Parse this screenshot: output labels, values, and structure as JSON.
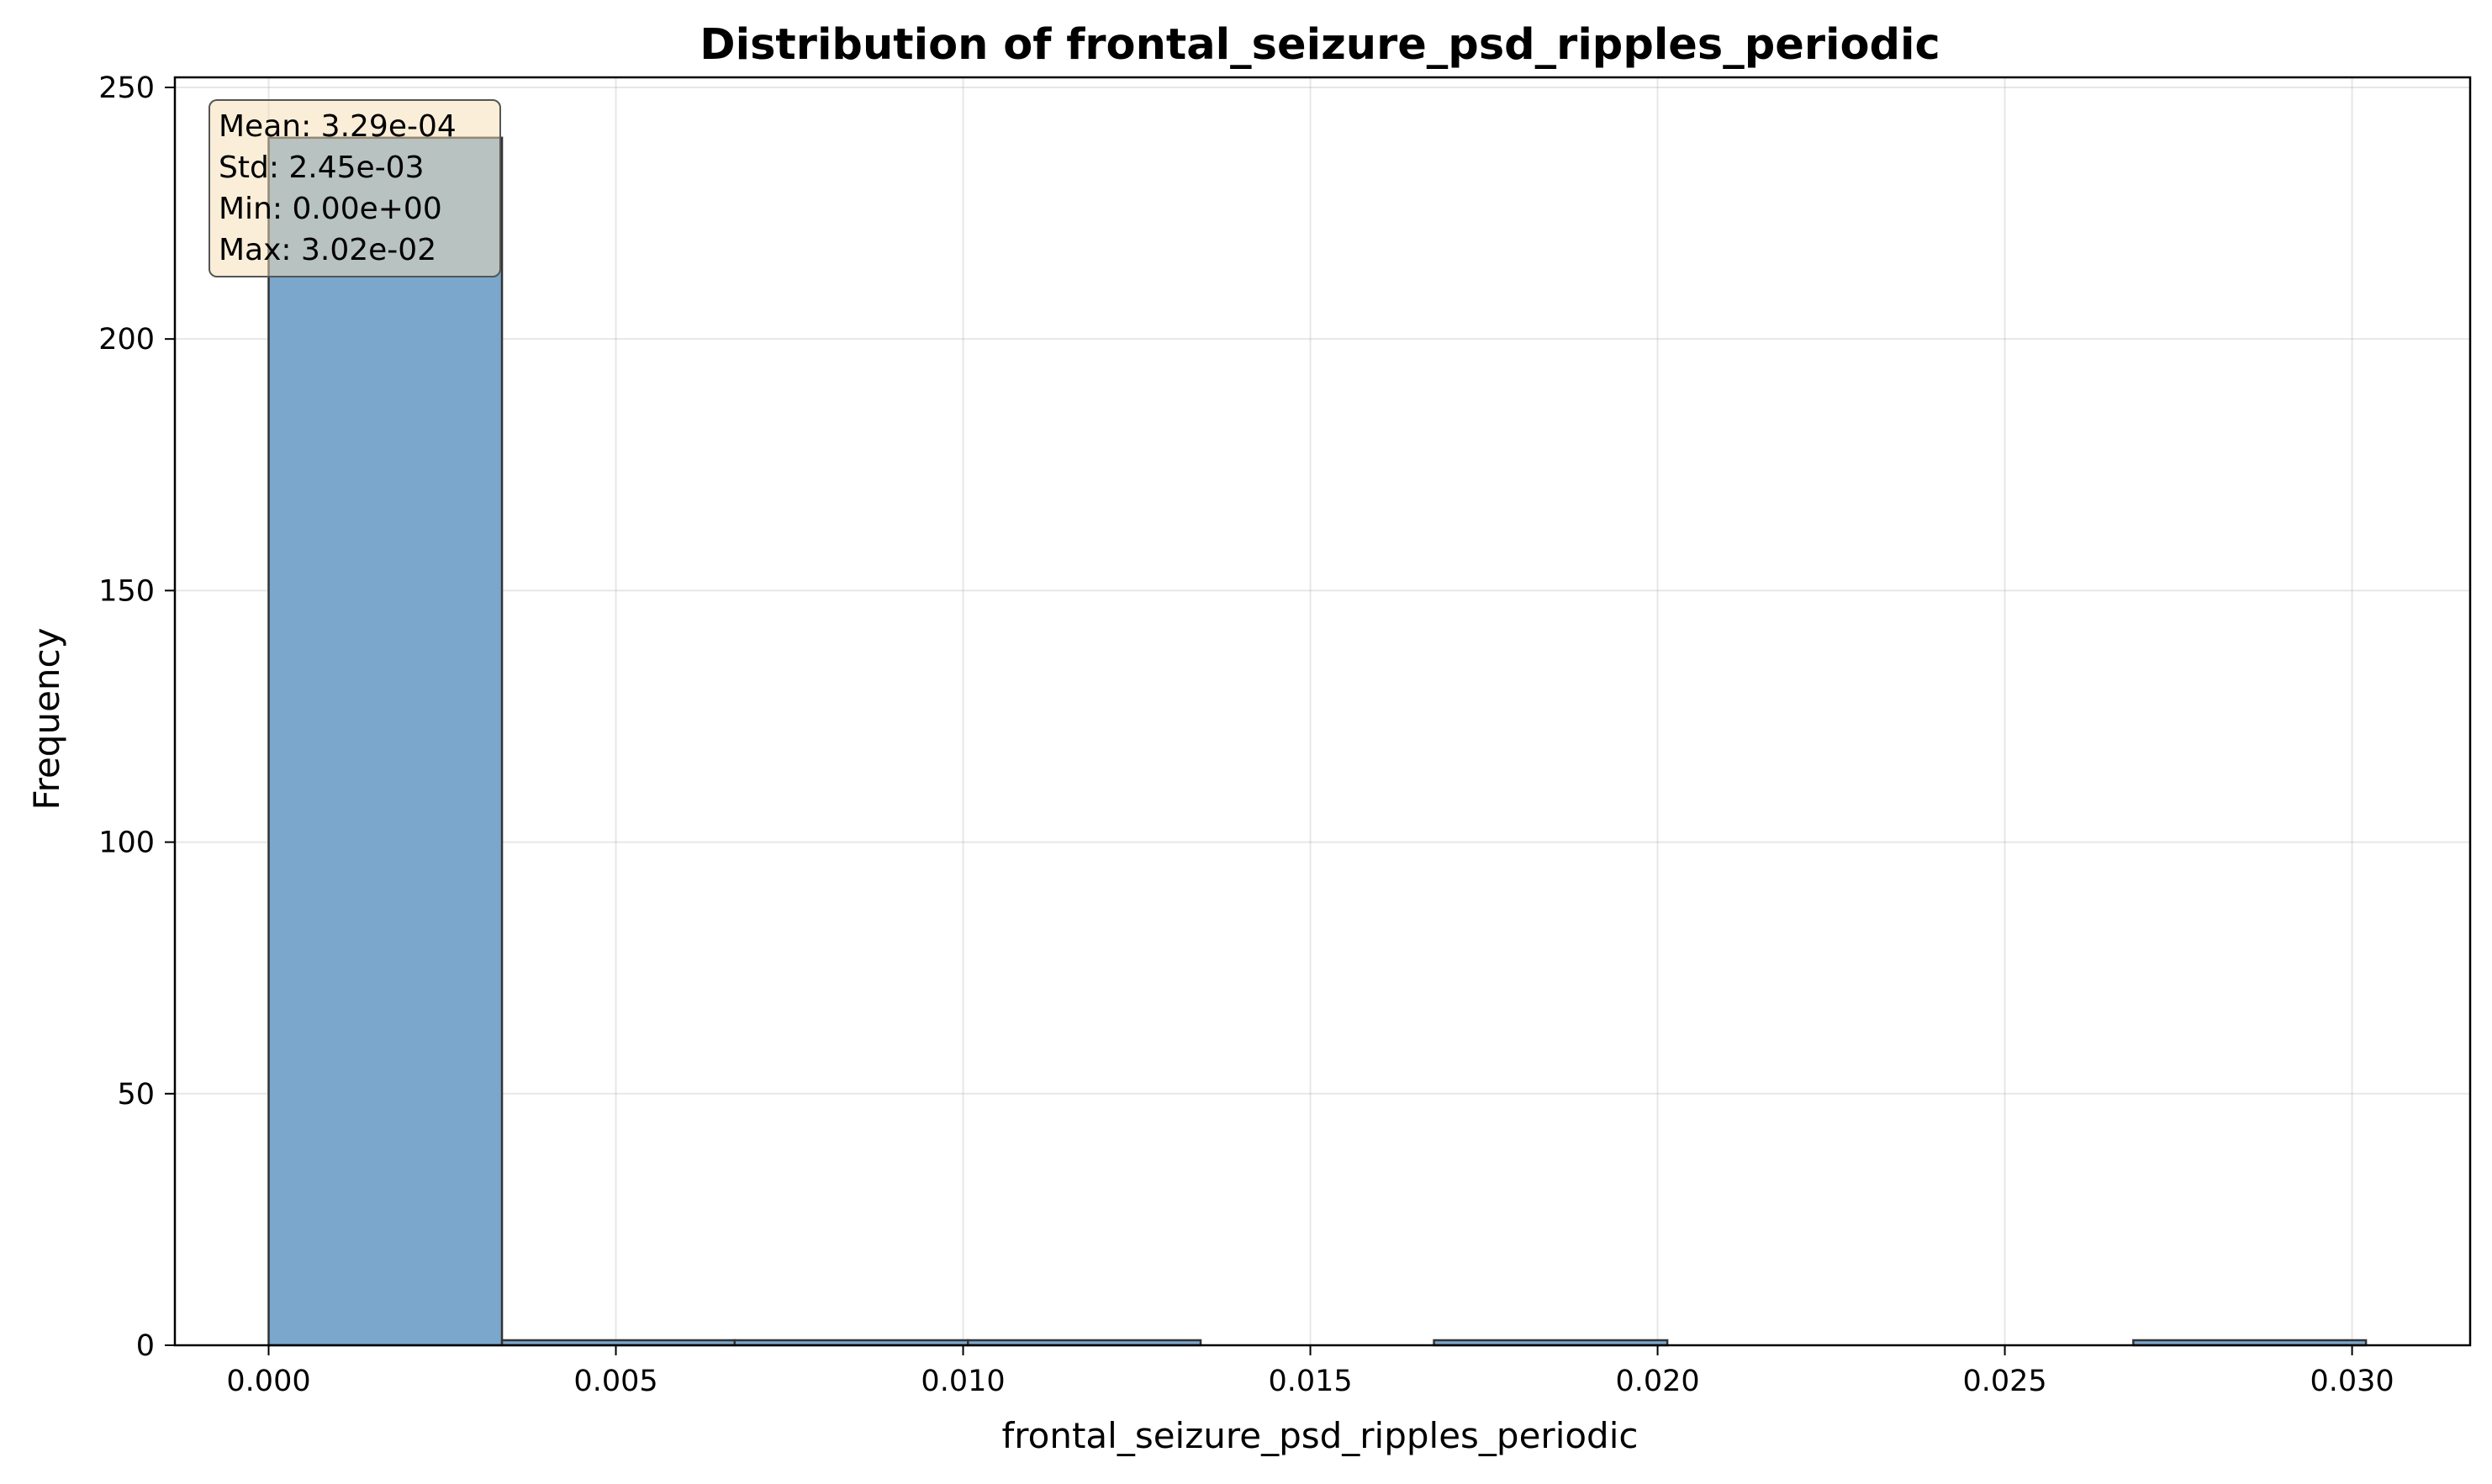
{
  "chart_data": {
    "type": "bar",
    "title": "Distribution of frontal_seizure_psd_ripples_periodic",
    "xlabel": "frontal_seizure_psd_ripples_periodic",
    "ylabel": "Frequency",
    "xlim": [
      -0.00135,
      0.0317
    ],
    "ylim": [
      0,
      252
    ],
    "xticks": [
      0.0,
      0.005,
      0.01,
      0.015,
      0.02,
      0.025,
      0.03
    ],
    "xtick_labels": [
      "0.000",
      "0.005",
      "0.010",
      "0.015",
      "0.020",
      "0.025",
      "0.030"
    ],
    "yticks": [
      0,
      50,
      100,
      150,
      200,
      250
    ],
    "ytick_labels": [
      "0",
      "50",
      "100",
      "150",
      "200",
      "250"
    ],
    "bin_edges": [
      0.0,
      0.00336,
      0.00671,
      0.01007,
      0.01342,
      0.01678,
      0.02014,
      0.02349,
      0.02685,
      0.0302
    ],
    "values": [
      240,
      1,
      1,
      1,
      0,
      1,
      0,
      0,
      1
    ],
    "bar_color": "#7ba7cc",
    "edge_color": "#333333",
    "grid": true,
    "stats": {
      "mean": "Mean: 3.29e-04",
      "std": "Std: 2.45e-03",
      "min": "Min: 0.00e+00",
      "max": "Max: 3.02e-02"
    }
  }
}
